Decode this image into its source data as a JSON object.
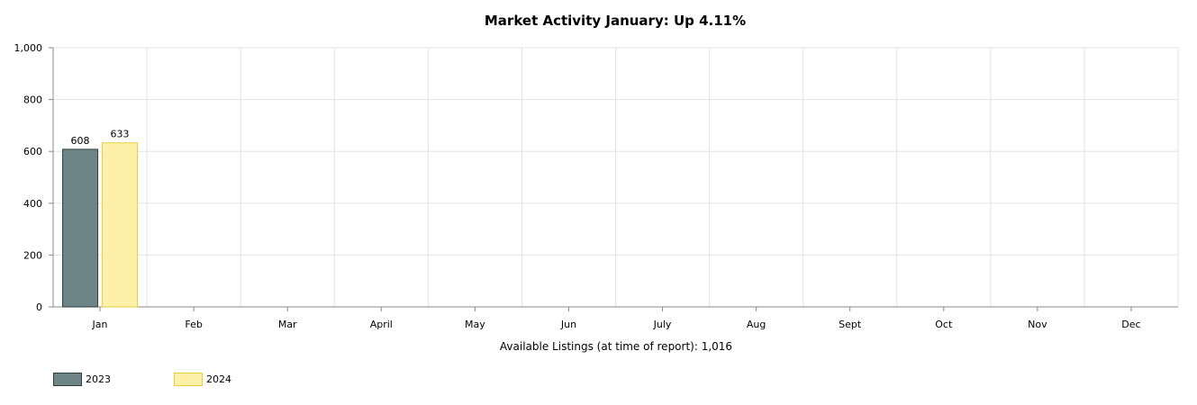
{
  "chart_data": {
    "type": "bar",
    "title": "Market Activity January: Up 4.11%",
    "xlabel": "Available Listings (at time of report): 1,016",
    "ylabel": "",
    "ylim": [
      0,
      1000
    ],
    "yticks": [
      "0",
      "200",
      "400",
      "600",
      "800",
      "1,000"
    ],
    "ytick_values": [
      0,
      200,
      400,
      600,
      800,
      1000
    ],
    "categories": [
      "Jan",
      "Feb",
      "Mar",
      "April",
      "May",
      "Jun",
      "July",
      "Aug",
      "Sept",
      "Oct",
      "Nov",
      "Dec"
    ],
    "series": [
      {
        "name": "2023",
        "values": [
          608,
          null,
          null,
          null,
          null,
          null,
          null,
          null,
          null,
          null,
          null,
          null
        ],
        "color": "#6e8587",
        "border": "#2f3d3e"
      },
      {
        "name": "2024",
        "values": [
          633,
          null,
          null,
          null,
          null,
          null,
          null,
          null,
          null,
          null,
          null,
          null
        ],
        "color": "#fff0a8",
        "border": "#e6cf3a"
      }
    ],
    "data_labels": [
      [
        "608"
      ],
      [
        "633"
      ]
    ],
    "grid": true,
    "legend_position": "bottom-left"
  }
}
